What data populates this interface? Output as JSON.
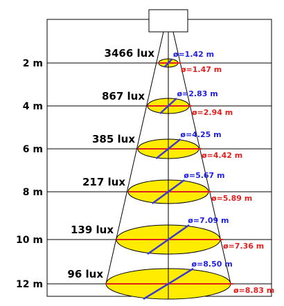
{
  "levels": [
    {
      "distance": "2 m",
      "lux": "3466 lux",
      "diameter_blue": "ø=1.42 m",
      "diameter_red": "ø=1.47 m"
    },
    {
      "distance": "4 m",
      "lux": "867 lux",
      "diameter_blue": "ø=2.83 m",
      "diameter_red": "ø=2.94 m"
    },
    {
      "distance": "6 m",
      "lux": "385 lux",
      "diameter_blue": "ø=4.25 m",
      "diameter_red": "ø=4.42 m"
    },
    {
      "distance": "8 m",
      "lux": "217 lux",
      "diameter_blue": "ø=5.67 m",
      "diameter_red": "ø=5.89 m"
    },
    {
      "distance": "10 m",
      "lux": "139 lux",
      "diameter_blue": "ø=7.09 m",
      "diameter_red": "ø=7.36 m"
    },
    {
      "distance": "12 m",
      "lux": "96 lux",
      "diameter_blue": "ø=8.50 m",
      "diameter_red": "ø=8.83 m"
    }
  ]
}
